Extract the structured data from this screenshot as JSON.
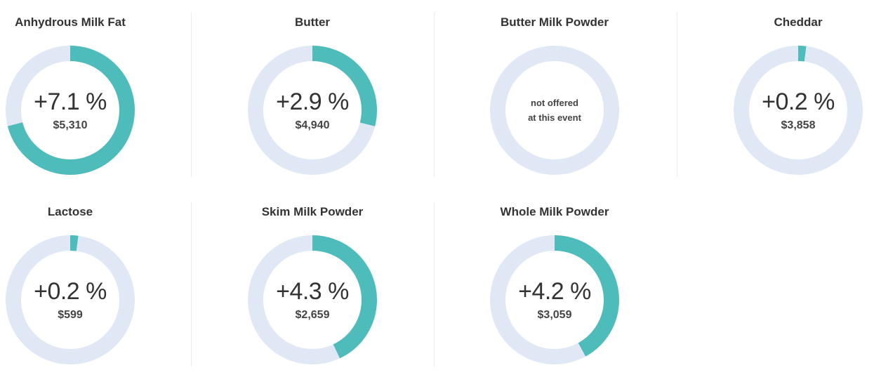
{
  "colors": {
    "track": "#dfe8f4",
    "fill": "#4fbcbc"
  },
  "products": [
    {
      "name": "Anhydrous Milk Fat",
      "change_label": "+7.1 %",
      "change_value": 7.1,
      "price": "$5,310",
      "offered": true,
      "na_line1": "",
      "na_line2": ""
    },
    {
      "name": "Butter",
      "change_label": "+2.9 %",
      "change_value": 2.9,
      "price": "$4,940",
      "offered": true,
      "na_line1": "",
      "na_line2": ""
    },
    {
      "name": "Butter Milk Powder",
      "change_label": "",
      "change_value": 0,
      "price": "",
      "offered": false,
      "na_line1": "not offered",
      "na_line2": "at this event"
    },
    {
      "name": "Cheddar",
      "change_label": "+0.2 %",
      "change_value": 0.2,
      "price": "$3,858",
      "offered": true,
      "na_line1": "",
      "na_line2": ""
    },
    {
      "name": "Lactose",
      "change_label": "+0.2 %",
      "change_value": 0.2,
      "price": "$599",
      "offered": true,
      "na_line1": "",
      "na_line2": ""
    },
    {
      "name": "Skim Milk Powder",
      "change_label": "+4.3 %",
      "change_value": 4.3,
      "price": "$2,659",
      "offered": true,
      "na_line1": "",
      "na_line2": ""
    },
    {
      "name": "Whole Milk Powder",
      "change_label": "+4.2 %",
      "change_value": 4.2,
      "price": "$3,059",
      "offered": true,
      "na_line1": "",
      "na_line2": ""
    }
  ]
}
